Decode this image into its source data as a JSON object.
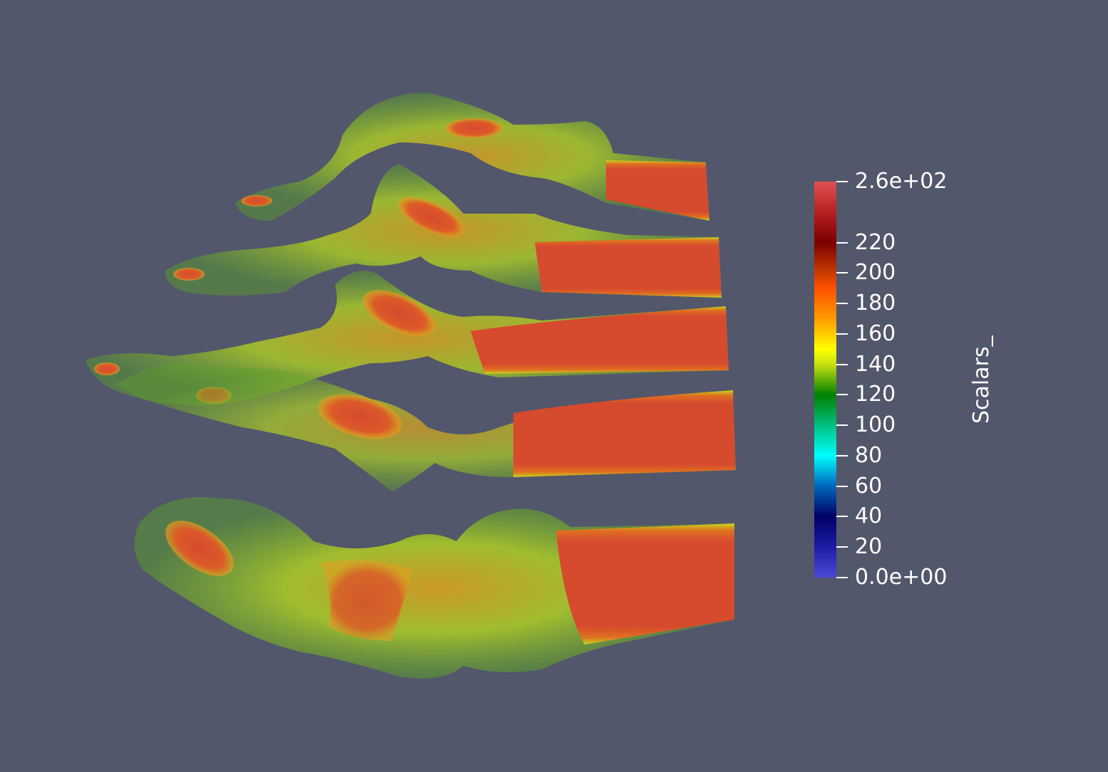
{
  "viewer": {
    "background_color": "#52576b",
    "render": "volume rendering of foot bones (rainbow colormap)"
  },
  "scalar_bar": {
    "title": "Scalars_",
    "labels": [
      "2.6e+02",
      "220",
      "200",
      "180",
      "160",
      "140",
      "120",
      "100",
      "80",
      "60",
      "40",
      "20",
      "0.0e+00"
    ],
    "range": [
      0,
      260
    ],
    "colormap_stops": [
      {
        "value": 0,
        "color": "#4a4ad6"
      },
      {
        "value": 20,
        "color": "#1d1da8"
      },
      {
        "value": 40,
        "color": "#000066"
      },
      {
        "value": 60,
        "color": "#0066bb"
      },
      {
        "value": 80,
        "color": "#00ffff"
      },
      {
        "value": 100,
        "color": "#00c080"
      },
      {
        "value": 120,
        "color": "#008000"
      },
      {
        "value": 140,
        "color": "#c8e010"
      },
      {
        "value": 150,
        "color": "#ffff00"
      },
      {
        "value": 170,
        "color": "#ff9a00"
      },
      {
        "value": 190,
        "color": "#ff5000"
      },
      {
        "value": 200,
        "color": "#c83c00"
      },
      {
        "value": 220,
        "color": "#7a0000"
      },
      {
        "value": 240,
        "color": "#b82020"
      },
      {
        "value": 260,
        "color": "#e05050"
      }
    ]
  },
  "colors": {
    "bone_core": "#d64a2e",
    "bone_mid": "#e07020",
    "bone_edge": "#c8d61e",
    "bone_outer": "#5aa028"
  }
}
